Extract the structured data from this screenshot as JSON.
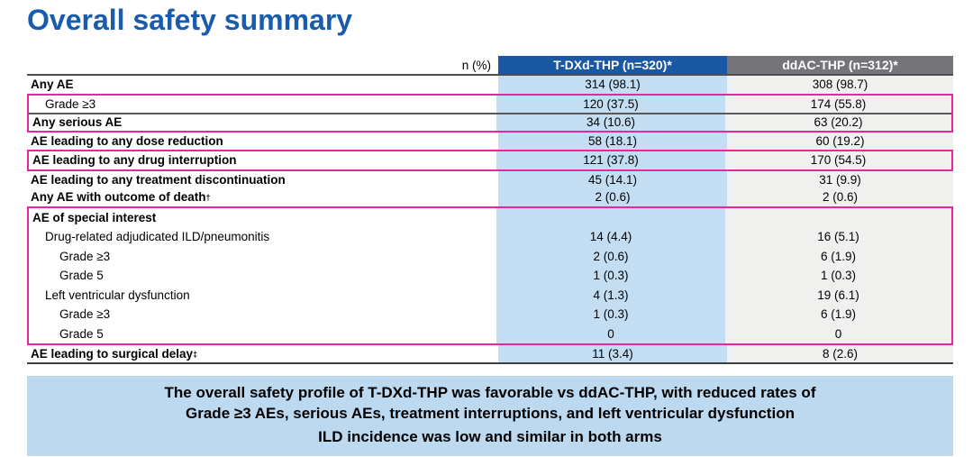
{
  "title": "Overall safety summary",
  "colors": {
    "title_blue": "#1A5BAB",
    "header_blue": "#1A58A4",
    "header_gray": "#747479",
    "column_blue": "#C3DDF2",
    "column_gray": "#F0F0EF",
    "highlight_pink": "#EA25A0",
    "summary_bg": "#BDD9F0"
  },
  "table": {
    "unit_header": "n (%)",
    "col1_header": "T-DXd-THP (n=320)*",
    "col2_header": "ddAC-THP (n=312)*",
    "rows": [
      {
        "label": "Any AE",
        "tdxd": "314 (98.1)",
        "ddac": "308 (98.7)"
      },
      {
        "label": "Grade ≥3",
        "tdxd": "120 (37.5)",
        "ddac": "174 (55.8)"
      },
      {
        "label": "Any serious AE",
        "tdxd": "34 (10.6)",
        "ddac": "63 (20.2)"
      },
      {
        "label": "AE leading to any dose reduction",
        "tdxd": "58 (18.1)",
        "ddac": "60 (19.2)"
      },
      {
        "label": "AE leading to any drug interruption",
        "tdxd": "121 (37.8)",
        "ddac": "170 (54.5)"
      },
      {
        "label": "AE leading to any treatment discontinuation",
        "tdxd": "45 (14.1)",
        "ddac": "31 (9.9)"
      },
      {
        "label": "Any AE with outcome of death",
        "sup": "†",
        "tdxd": "2 (0.6)",
        "ddac": "2 (0.6)"
      },
      {
        "label": "AE of special interest",
        "tdxd": "",
        "ddac": ""
      },
      {
        "label": "Drug-related adjudicated ILD/pneumonitis",
        "tdxd": "14 (4.4)",
        "ddac": "16 (5.1)"
      },
      {
        "label": "Grade ≥3",
        "tdxd": "2 (0.6)",
        "ddac": "6 (1.9)"
      },
      {
        "label": "Grade 5",
        "tdxd": "1 (0.3)",
        "ddac": "1 (0.3)"
      },
      {
        "label": "Left ventricular dysfunction",
        "tdxd": "4 (1.3)",
        "ddac": "19 (6.1)"
      },
      {
        "label": "Grade ≥3",
        "tdxd": "1 (0.3)",
        "ddac": "6 (1.9)"
      },
      {
        "label": "Grade 5",
        "tdxd": "0",
        "ddac": "0"
      },
      {
        "label": "AE leading to surgical delay",
        "sup": "‡",
        "tdxd": "11 (3.4)",
        "ddac": "8 (2.6)"
      }
    ]
  },
  "summary": {
    "lines": [
      "The overall safety profile of T-DXd-THP was favorable vs ddAC-THP, with reduced rates of",
      "Grade ≥3 AEs, serious AEs, treatment interruptions, and left ventricular dysfunction",
      "ILD incidence was low and similar in both arms"
    ]
  }
}
